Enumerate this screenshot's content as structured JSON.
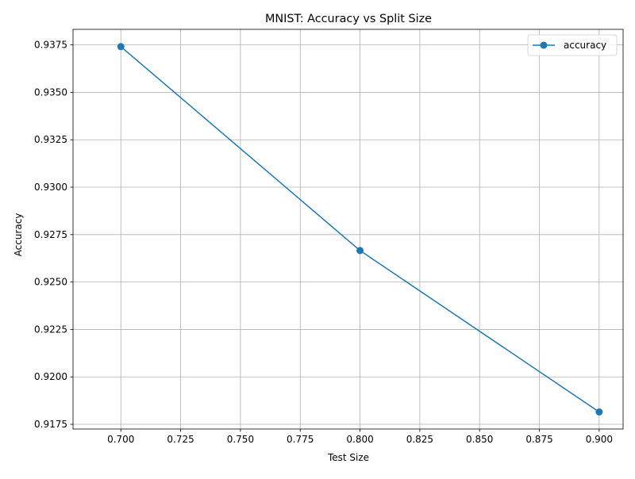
{
  "chart_data": {
    "type": "line",
    "title": "MNIST: Accuracy vs Split Size",
    "xlabel": "Test Size",
    "ylabel": "Accuracy",
    "x": [
      0.7,
      0.8,
      0.9
    ],
    "series": [
      {
        "name": "accuracy",
        "values": [
          0.93741,
          0.92666,
          0.91815
        ],
        "color": "#1f77b4",
        "marker": "circle"
      }
    ],
    "xlim": [
      0.68,
      0.91
    ],
    "ylim": [
      0.91725,
      0.93832
    ],
    "xticks": [
      "0.700",
      "0.725",
      "0.750",
      "0.775",
      "0.800",
      "0.825",
      "0.850",
      "0.875",
      "0.900"
    ],
    "yticks": [
      "0.9175",
      "0.9200",
      "0.9225",
      "0.9250",
      "0.9275",
      "0.9300",
      "0.9325",
      "0.9350",
      "0.9375"
    ],
    "grid": true,
    "legend_position": "top-right"
  }
}
